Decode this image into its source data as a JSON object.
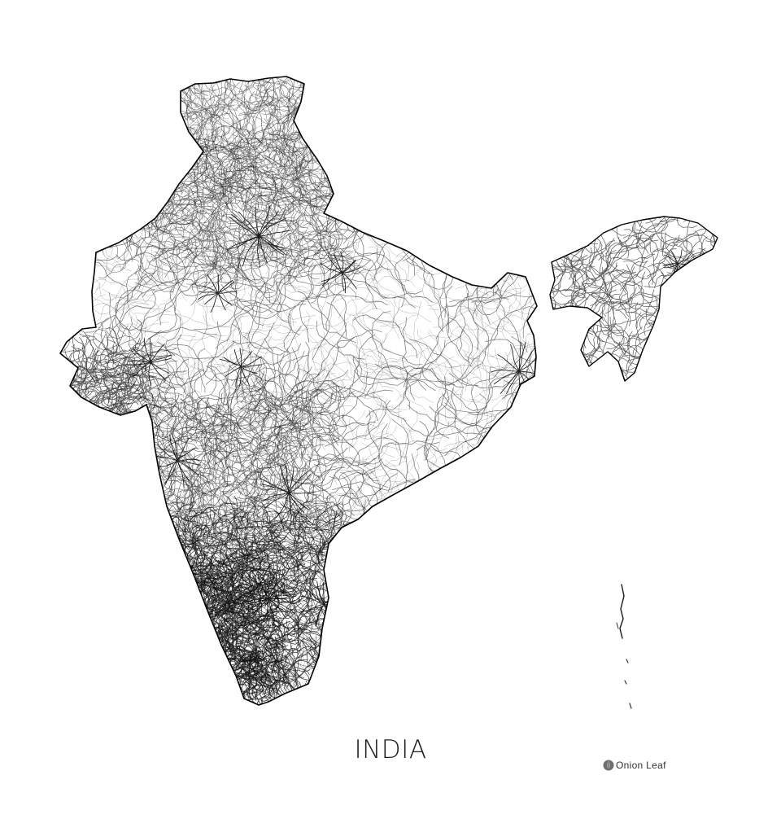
{
  "map": {
    "title": "INDIA",
    "style": "road-network line art",
    "ink_color": "#000000",
    "background_color": "#ffffff"
  },
  "brand": {
    "name": "Onion Leaf",
    "logo_icon": "onion-leaf-logo-icon",
    "logo_color": "#6d6d6d"
  }
}
